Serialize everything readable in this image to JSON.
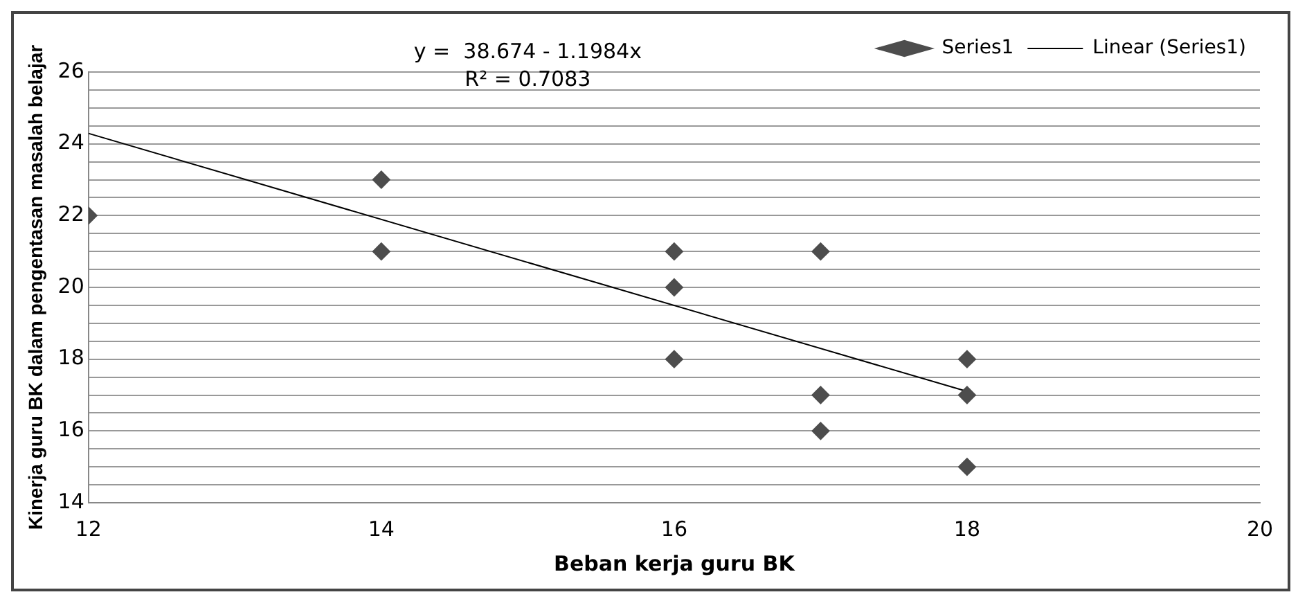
{
  "chart_data": {
    "type": "scatter",
    "xlabel": "Beban kerja guru BK",
    "ylabel": "Kinerja guru BK dalam pengentasan masalah belajar",
    "annotations": [
      "y =  38.674 - 1.1984x",
      "R² = 0.7083"
    ],
    "series": [
      {
        "name": "Series1",
        "type": "scatter",
        "color": "#4d4d4d",
        "marker": "diamond",
        "x": [
          12,
          14,
          14,
          16,
          16,
          16,
          17,
          17,
          17,
          18,
          18,
          18
        ],
        "values": [
          22,
          23,
          21,
          21,
          20,
          18,
          21,
          17,
          16,
          18,
          17,
          15
        ]
      },
      {
        "name": "Linear (Series1)",
        "type": "line",
        "color": "#000000",
        "marker": "none",
        "line_style": "solid",
        "x": [
          12,
          18
        ],
        "values": [
          24.29,
          17.1
        ]
      }
    ],
    "xlim": [
      12,
      20
    ],
    "xticks": [
      12,
      14,
      16,
      18,
      20
    ],
    "ylim": [
      14,
      26
    ],
    "yticks": [
      14,
      {
        "value": 14.5,
        "label": null
      },
      {
        "value": 15,
        "label": null
      },
      {
        "value": 15.5,
        "label": null
      },
      16,
      {
        "value": 16.5,
        "label": null
      },
      {
        "value": 17,
        "label": null
      },
      {
        "value": 17.5,
        "label": null
      },
      18,
      {
        "value": 18.5,
        "label": null
      },
      {
        "value": 19,
        "label": null
      },
      {
        "value": 19.5,
        "label": null
      },
      20,
      {
        "value": 20.5,
        "label": null
      },
      {
        "value": 21,
        "label": null
      },
      {
        "value": 21.5,
        "label": null
      },
      22,
      {
        "value": 22.5,
        "label": null
      },
      {
        "value": 23,
        "label": null
      },
      {
        "value": 23.5,
        "label": null
      },
      24,
      {
        "value": 24.5,
        "label": null
      },
      {
        "value": 25,
        "label": null
      },
      {
        "value": 25.5,
        "label": null
      },
      26
    ],
    "grid": "y",
    "legend": "top right"
  }
}
